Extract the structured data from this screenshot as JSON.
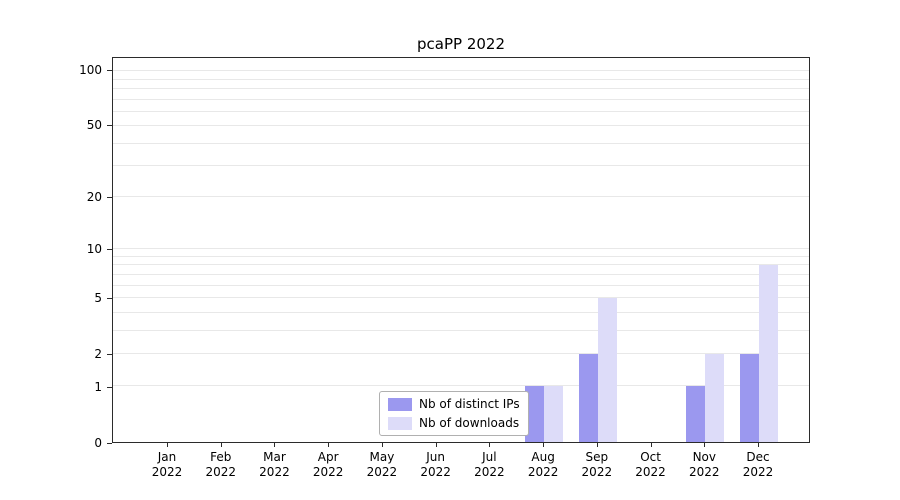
{
  "title": "pcaPP 2022",
  "chart_data": {
    "type": "bar",
    "title": "pcaPP 2022",
    "categories": [
      "Jan",
      "Feb",
      "Mar",
      "Apr",
      "May",
      "Jun",
      "Jul",
      "Aug",
      "Sep",
      "Oct",
      "Nov",
      "Dec"
    ],
    "year_label": "2022",
    "series": [
      {
        "name": "Nb of distinct IPs",
        "color": "#9b98ef",
        "values": [
          0,
          0,
          0,
          0,
          0,
          0,
          0,
          1,
          2,
          0,
          1,
          2
        ]
      },
      {
        "name": "Nb of downloads",
        "color": "#dddcf9",
        "values": [
          0,
          0,
          0,
          0,
          0,
          0,
          0,
          1,
          5,
          0,
          2,
          8
        ]
      }
    ],
    "yscale": "log1p",
    "ylim": [
      0,
      118
    ],
    "y_tick_values": [
      100,
      50,
      20,
      10,
      5,
      2,
      1,
      0
    ],
    "y_tick_labels": [
      "100",
      "50",
      "20",
      "10",
      "5",
      "2",
      "1",
      "0"
    ],
    "grid_values": [
      1,
      2,
      3,
      4,
      5,
      6,
      7,
      8,
      9,
      10,
      20,
      30,
      40,
      50,
      60,
      70,
      80,
      90,
      100
    ],
    "grid_on": true,
    "legend_position": "lower center inside",
    "xlabel": "",
    "ylabel": ""
  },
  "colors": {
    "axis": "#2b2b2b",
    "grid": "#e8e8e8",
    "background": "#ffffff",
    "legend_border": "#b0b0b0"
  }
}
